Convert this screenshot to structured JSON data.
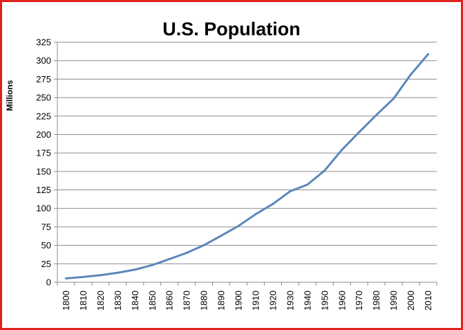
{
  "chart_data": {
    "type": "line",
    "title": "U.S. Population",
    "xlabel": "",
    "ylabel": "Millions",
    "categories": [
      "1800",
      "1810",
      "1820",
      "1830",
      "1840",
      "1850",
      "1860",
      "1870",
      "1880",
      "1890",
      "1900",
      "1910",
      "1920",
      "1930",
      "1940",
      "1950",
      "1960",
      "1970",
      "1980",
      "1990",
      "2000",
      "2010"
    ],
    "series": [
      {
        "values": [
          5.3,
          7.2,
          9.6,
          12.9,
          17.1,
          23.2,
          31.4,
          39.8,
          50.2,
          63.0,
          76.2,
          92.2,
          106.0,
          123.2,
          132.2,
          151.3,
          179.3,
          203.2,
          226.5,
          248.7,
          281.4,
          308.7
        ],
        "color": "#5b87b9"
      }
    ],
    "yticks": [
      "0",
      "25",
      "50",
      "75",
      "100",
      "125",
      "150",
      "175",
      "200",
      "225",
      "250",
      "275",
      "300",
      "325"
    ],
    "ylim": [
      0,
      325
    ],
    "grid": true,
    "legend": "none"
  }
}
